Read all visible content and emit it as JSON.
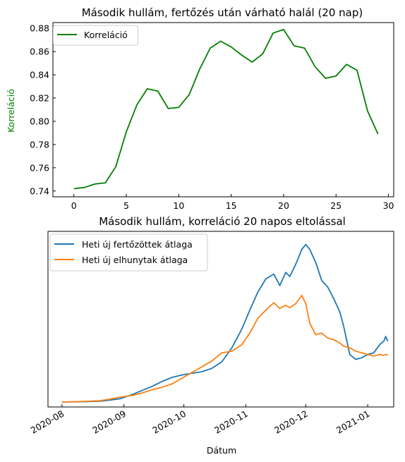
{
  "chart_data": [
    {
      "type": "line",
      "title": "Második hullám, fertőzés után várható halál (20 nap)",
      "xlabel": "",
      "ylabel": "Korreláció",
      "xlim": [
        -2,
        30.5
      ],
      "ylim": [
        0.735,
        0.885
      ],
      "x_ticks": [
        0,
        5,
        10,
        15,
        20,
        25,
        30
      ],
      "y_ticks": [
        0.74,
        0.76,
        0.78,
        0.8,
        0.82,
        0.84,
        0.86,
        0.88
      ],
      "y_tick_labels": [
        "0.74",
        "0.76",
        "0.78",
        "0.80",
        "0.82",
        "0.84",
        "0.86",
        "0.88"
      ],
      "legend": "top-left",
      "color": "#008000",
      "series": [
        {
          "name": "Korreláció",
          "x": [
            0,
            1,
            2,
            3,
            4,
            5,
            6,
            7,
            8,
            9,
            10,
            11,
            12,
            13,
            14,
            15,
            16,
            17,
            18,
            19,
            20,
            21,
            22,
            23,
            24,
            25,
            26,
            27,
            28,
            29
          ],
          "values": [
            0.742,
            0.743,
            0.746,
            0.747,
            0.761,
            0.791,
            0.814,
            0.828,
            0.826,
            0.811,
            0.812,
            0.823,
            0.845,
            0.863,
            0.869,
            0.864,
            0.857,
            0.851,
            0.858,
            0.876,
            0.879,
            0.865,
            0.863,
            0.847,
            0.837,
            0.839,
            0.849,
            0.844,
            0.809,
            0.789
          ]
        }
      ]
    },
    {
      "type": "line",
      "title": "Második hullám, korreláció 20 napos eltolással",
      "xlabel": "Dátum",
      "ylabel": "",
      "x_ticks": [
        "2020-08",
        "2020-09",
        "2020-10",
        "2020-11",
        "2020-12",
        "2021-01"
      ],
      "x_tick_dates": [
        "2020-08-01",
        "2020-09-01",
        "2020-10-01",
        "2020-11-01",
        "2020-12-01",
        "2021-01-01"
      ],
      "xlim": [
        "2020-07-25",
        "2021-01-14"
      ],
      "ylim": [
        -0.03,
        1.04
      ],
      "y_axis_labels": "none",
      "legend": "top-left",
      "series": [
        {
          "name": "Heti új fertőzöttek átlaga",
          "color": "#1f77b4",
          "x": [
            "2020-08-01",
            "2020-08-10",
            "2020-08-20",
            "2020-08-25",
            "2020-08-30",
            "2020-09-05",
            "2020-09-10",
            "2020-09-15",
            "2020-09-20",
            "2020-09-25",
            "2020-09-30",
            "2020-10-05",
            "2020-10-10",
            "2020-10-15",
            "2020-10-20",
            "2020-10-25",
            "2020-10-30",
            "2020-11-03",
            "2020-11-07",
            "2020-11-11",
            "2020-11-15",
            "2020-11-18",
            "2020-11-21",
            "2020-11-23",
            "2020-11-26",
            "2020-11-29",
            "2020-12-01",
            "2020-12-03",
            "2020-12-06",
            "2020-12-09",
            "2020-12-12",
            "2020-12-15",
            "2020-12-18",
            "2020-12-20",
            "2020-12-23",
            "2020-12-26",
            "2020-12-29",
            "2021-01-01",
            "2021-01-04",
            "2021-01-07",
            "2021-01-09",
            "2021-01-10",
            "2021-01-11"
          ],
          "values": [
            0.0,
            0.002,
            0.005,
            0.012,
            0.02,
            0.045,
            0.07,
            0.095,
            0.125,
            0.15,
            0.165,
            0.175,
            0.185,
            0.205,
            0.245,
            0.33,
            0.445,
            0.56,
            0.67,
            0.75,
            0.78,
            0.71,
            0.79,
            0.765,
            0.84,
            0.93,
            0.96,
            0.93,
            0.85,
            0.74,
            0.7,
            0.63,
            0.55,
            0.46,
            0.29,
            0.26,
            0.27,
            0.29,
            0.3,
            0.35,
            0.37,
            0.4,
            0.37
          ]
        },
        {
          "name": "Heti új elhunytak átlaga",
          "color": "#ff7f0e",
          "x": [
            "2020-08-01",
            "2020-08-10",
            "2020-08-20",
            "2020-08-25",
            "2020-08-30",
            "2020-09-05",
            "2020-09-10",
            "2020-09-15",
            "2020-09-20",
            "2020-09-25",
            "2020-09-30",
            "2020-10-05",
            "2020-10-10",
            "2020-10-15",
            "2020-10-20",
            "2020-10-25",
            "2020-10-30",
            "2020-11-03",
            "2020-11-07",
            "2020-11-11",
            "2020-11-15",
            "2020-11-18",
            "2020-11-21",
            "2020-11-23",
            "2020-11-26",
            "2020-11-29",
            "2020-12-01",
            "2020-12-03",
            "2020-12-06",
            "2020-12-09",
            "2020-12-12",
            "2020-12-15",
            "2020-12-18",
            "2020-12-20",
            "2020-12-23",
            "2020-12-26",
            "2020-12-29",
            "2021-01-01",
            "2021-01-04",
            "2021-01-07",
            "2021-01-09",
            "2021-01-10",
            "2021-01-11"
          ],
          "values": [
            0.0,
            0.003,
            0.008,
            0.018,
            0.03,
            0.04,
            0.055,
            0.075,
            0.09,
            0.11,
            0.145,
            0.18,
            0.215,
            0.25,
            0.3,
            0.31,
            0.35,
            0.42,
            0.51,
            0.56,
            0.605,
            0.57,
            0.59,
            0.575,
            0.6,
            0.65,
            0.6,
            0.48,
            0.41,
            0.42,
            0.39,
            0.38,
            0.36,
            0.34,
            0.33,
            0.31,
            0.3,
            0.29,
            0.28,
            0.29,
            0.285,
            0.29,
            0.285
          ]
        }
      ]
    }
  ]
}
